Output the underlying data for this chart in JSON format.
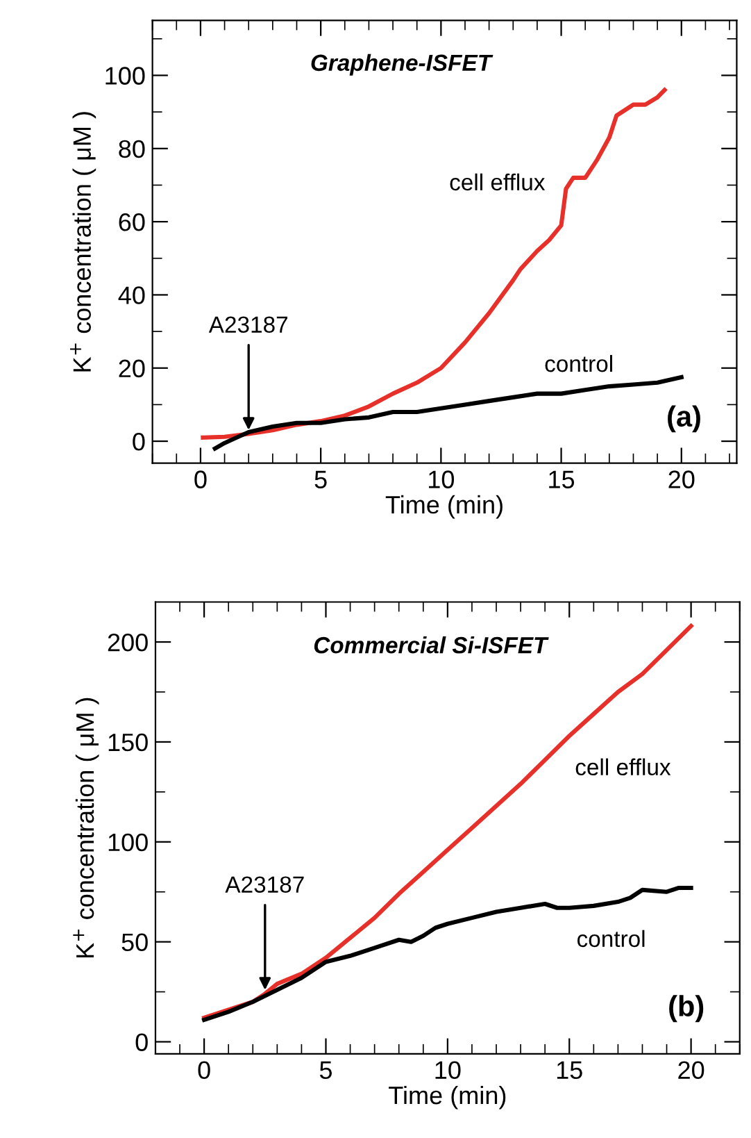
{
  "chart_data": [
    {
      "type": "line",
      "title": "Graphene-ISFET",
      "xlabel": "Time (min)",
      "ylabel": "K$^{+}$ concentration ( μM )",
      "xlim": [
        -2,
        22.3
      ],
      "ylim": [
        -6,
        115
      ],
      "xticks": [
        0,
        5,
        10,
        15,
        20
      ],
      "yticks": [
        0,
        20,
        40,
        60,
        80,
        100
      ],
      "grid": false,
      "legend": false,
      "series": [
        {
          "name": "cell efflux",
          "color": "#e8302a",
          "x": [
            0.1,
            1,
            2,
            3,
            4,
            5,
            6,
            7,
            8,
            9,
            10,
            11,
            12,
            13,
            13.3,
            14,
            14.5,
            15,
            15.2,
            15.5,
            16,
            16.5,
            17,
            17.3,
            18,
            18.5,
            19,
            19.3
          ],
          "values": [
            1,
            1.2,
            2,
            3,
            4.5,
            5.5,
            7,
            9.5,
            13,
            16,
            20,
            27,
            35,
            44,
            47,
            52,
            55,
            59,
            69,
            72,
            72,
            77,
            83,
            89,
            92,
            92,
            94,
            96
          ]
        },
        {
          "name": "control",
          "color": "#000000",
          "x": [
            0.6,
            1,
            1.5,
            2,
            3,
            4,
            5,
            6,
            7,
            8,
            9,
            10,
            11,
            12,
            13,
            14,
            15,
            16,
            17,
            18,
            19,
            20
          ],
          "values": [
            -2,
            -0.5,
            1,
            2.5,
            4,
            5,
            5,
            6,
            6.5,
            8,
            8,
            9,
            10,
            11,
            12,
            13,
            13,
            14,
            15,
            15.5,
            16,
            17.5
          ]
        }
      ],
      "annotations": [
        {
          "text": "A23187",
          "x": 2,
          "y": 2
        },
        "(a)"
      ]
    },
    {
      "type": "line",
      "title": "Commercial Si-ISFET",
      "xlabel": "Time (min)",
      "ylabel": "K$^{+}$ concentration ( μM )",
      "xlim": [
        -2,
        22
      ],
      "ylim": [
        -6,
        220
      ],
      "xticks": [
        0,
        5,
        10,
        15,
        20
      ],
      "yticks": [
        0,
        50,
        100,
        150,
        200
      ],
      "grid": false,
      "legend": false,
      "series": [
        {
          "name": "cell efflux",
          "color": "#e8302a",
          "x": [
            0,
            1,
            2,
            2.5,
            3,
            4,
            5,
            6,
            7,
            8,
            9,
            10,
            11,
            12,
            13,
            14,
            15,
            16,
            17,
            18,
            19,
            20
          ],
          "values": [
            12,
            16,
            20,
            24,
            29,
            34,
            42,
            52,
            62,
            74,
            85,
            96,
            107,
            118,
            129,
            141,
            153,
            164,
            175,
            184,
            196,
            208
          ]
        },
        {
          "name": "control",
          "color": "#000000",
          "x": [
            0,
            1,
            2,
            3,
            4,
            5,
            6,
            7,
            8,
            8.5,
            9,
            9.5,
            10,
            11,
            12,
            13,
            14,
            14.5,
            15,
            16,
            17,
            17.5,
            18,
            19,
            19.5,
            20
          ],
          "values": [
            11,
            15,
            20,
            26,
            32,
            40,
            43,
            47,
            51,
            50,
            53,
            57,
            59,
            62,
            65,
            67,
            69,
            67,
            67,
            68,
            70,
            72,
            76,
            75,
            77,
            77
          ]
        }
      ],
      "annotations": [
        {
          "text": "A23187",
          "x": 2.5,
          "y": 24
        },
        "(b)"
      ]
    }
  ]
}
